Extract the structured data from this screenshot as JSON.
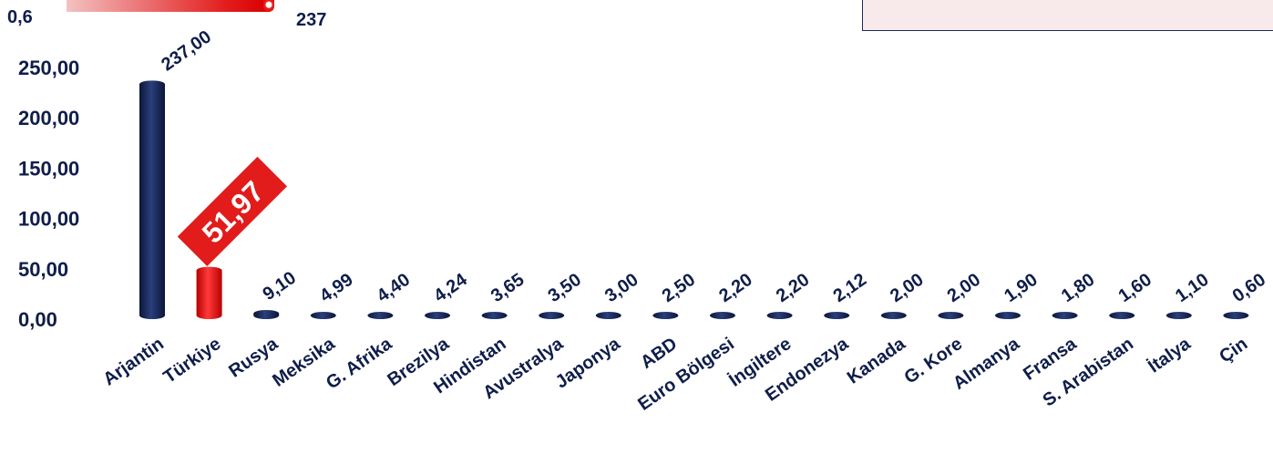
{
  "legend_scale": {
    "min_label": "0,6",
    "max_label": "237"
  },
  "chart_data": {
    "type": "bar",
    "title": "",
    "xlabel": "",
    "ylabel": "",
    "ylim": [
      0,
      250
    ],
    "grid": false,
    "yticks": [
      "0,00",
      "50,00",
      "100,00",
      "150,00",
      "200,00",
      "250,00"
    ],
    "categories": [
      "Arjantin",
      "Türkiye",
      "Rusya",
      "Meksika",
      "G. Afrika",
      "Brezilya",
      "Hindistan",
      "Avustralya",
      "Japonya",
      "ABD",
      "Euro Bölgesi",
      "İngiltere",
      "Endonezya",
      "Kanada",
      "G. Kore",
      "Almanya",
      "Fransa",
      "S. Arabistan",
      "İtalya",
      "Çin"
    ],
    "values": [
      237.0,
      51.97,
      9.1,
      4.99,
      4.4,
      4.24,
      3.65,
      3.5,
      3.0,
      2.5,
      2.2,
      2.2,
      2.12,
      2.0,
      2.0,
      1.9,
      1.8,
      1.6,
      1.1,
      0.6
    ],
    "value_labels": [
      "237,00",
      "51,97",
      "9,10",
      "4,99",
      "4,40",
      "4,24",
      "3,65",
      "3,50",
      "3,00",
      "2,50",
      "2,20",
      "2,20",
      "2,12",
      "2,00",
      "2,00",
      "1,90",
      "1,80",
      "1,60",
      "1,10",
      "0,60"
    ],
    "highlight_index": 1,
    "colors": {
      "default": "#1b2a5c",
      "highlight": "#e21b1b",
      "text": "#0f1d4a"
    }
  }
}
